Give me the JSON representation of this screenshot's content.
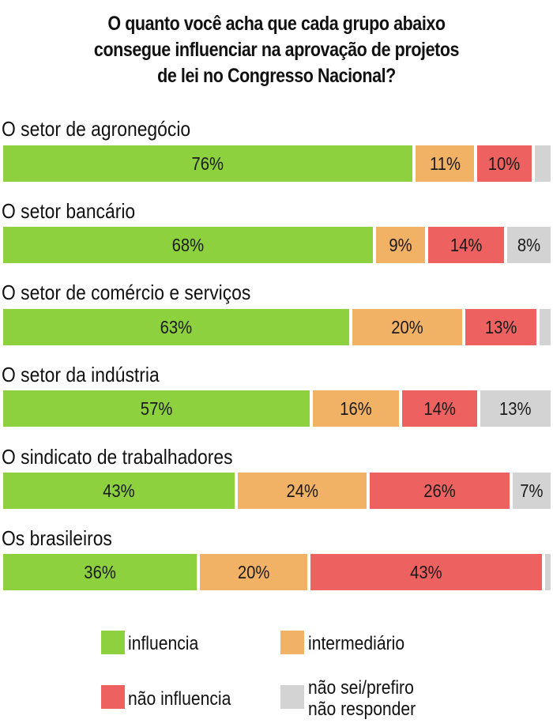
{
  "chart_data": {
    "type": "bar",
    "orientation": "horizontal",
    "stacked": true,
    "title": "O quanto você acha que cada grupo abaixo consegue influenciar na aprovação de projetos de lei no Congresso Nacional?",
    "title_lines": [
      "O quanto você acha que cada grupo abaixo",
      "consegue influenciar na aprovação de projetos",
      "de lei no Congresso Nacional?"
    ],
    "categories": [
      "O setor de agronegócio",
      "O setor bancário",
      "O setor de comércio e serviços",
      "O setor da indústria",
      "O sindicato de trabalhadores",
      "Os brasileiros"
    ],
    "series": [
      {
        "name": "influencia",
        "color": "#8dd13f",
        "values": [
          76,
          68,
          63,
          57,
          43,
          36
        ]
      },
      {
        "name": "intermediário",
        "color": "#f1b266",
        "values": [
          11,
          9,
          20,
          16,
          24,
          20
        ]
      },
      {
        "name": "não influencia",
        "color": "#ee6161",
        "values": [
          10,
          14,
          13,
          14,
          26,
          43
        ]
      },
      {
        "name": "não sei/prefiro não responder",
        "color": "#d3d3d3",
        "values": [
          3,
          8,
          2,
          13,
          7,
          1
        ]
      }
    ],
    "data_labels": [
      [
        "76%",
        "11%",
        "10%",
        ""
      ],
      [
        "68%",
        "9%",
        "14%",
        "8%"
      ],
      [
        "63%",
        "20%",
        "13%",
        ""
      ],
      [
        "57%",
        "16%",
        "14%",
        "13%"
      ],
      [
        "43%",
        "24%",
        "26%",
        "7%"
      ],
      [
        "36%",
        "20%",
        "43%",
        ""
      ]
    ],
    "xlim": [
      0,
      100
    ],
    "legend": {
      "placement": "bottom",
      "items": [
        {
          "label": "influencia",
          "color": "#8dd13f"
        },
        {
          "label": "intermediário",
          "color": "#f1b266"
        },
        {
          "label": "não influencia",
          "color": "#ee6161"
        },
        {
          "label": "não sei/prefiro não responder",
          "color": "#d3d3d3",
          "lines": [
            "não sei/prefiro",
            "não responder"
          ]
        }
      ]
    },
    "grid": false
  }
}
